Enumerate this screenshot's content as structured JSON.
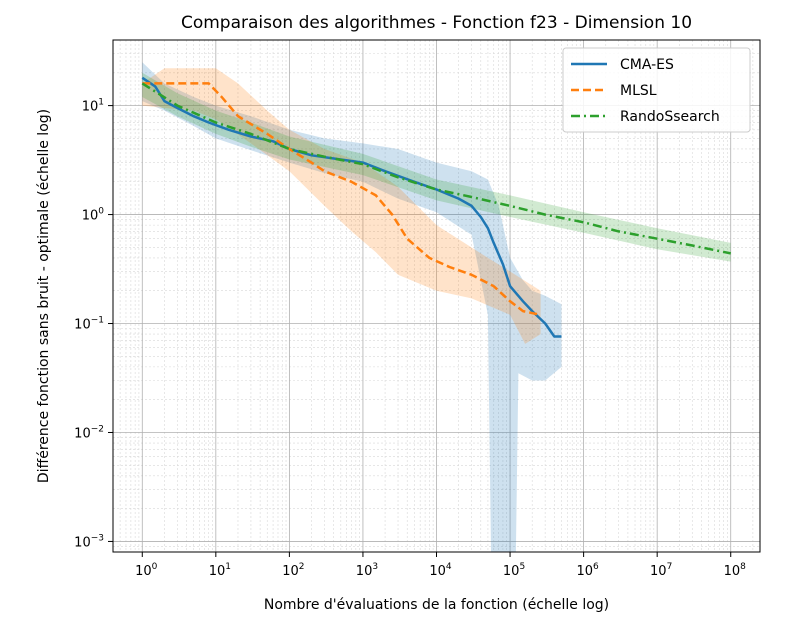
{
  "chart_data": {
    "type": "line",
    "title": "Comparaison des algorithmes - Fonction f23 - Dimension 10",
    "xlabel": "Nombre d'évaluations de la fonction (échelle log)",
    "ylabel": "Différence fonction sans bruit - optimale (échelle log)",
    "xscale": "log",
    "yscale": "log",
    "xlim": [
      0.4,
      250000000
    ],
    "ylim": [
      0.0008,
      40
    ],
    "grid": true,
    "legend_position": "top-right",
    "x_tick_labels": [
      {
        "base": "10",
        "exp": "0"
      },
      {
        "base": "10",
        "exp": "1"
      },
      {
        "base": "10",
        "exp": "2"
      },
      {
        "base": "10",
        "exp": "3"
      },
      {
        "base": "10",
        "exp": "4"
      },
      {
        "base": "10",
        "exp": "5"
      },
      {
        "base": "10",
        "exp": "6"
      },
      {
        "base": "10",
        "exp": "7"
      },
      {
        "base": "10",
        "exp": "8"
      }
    ],
    "y_tick_labels": [
      {
        "base": "10",
        "exp": "1"
      },
      {
        "base": "10",
        "exp": "0"
      },
      {
        "base": "10",
        "exp": "−1"
      },
      {
        "base": "10",
        "exp": "−2"
      },
      {
        "base": "10",
        "exp": "−3"
      }
    ],
    "series": [
      {
        "name": "CMA-ES",
        "color": "#1f77b4",
        "linestyle": "solid",
        "points": [
          [
            1,
            18
          ],
          [
            1.5,
            15
          ],
          [
            2,
            11
          ],
          [
            3,
            9.5
          ],
          [
            5,
            8
          ],
          [
            8,
            7
          ],
          [
            15,
            6
          ],
          [
            30,
            5.2
          ],
          [
            60,
            4.7
          ],
          [
            100,
            4.0
          ],
          [
            200,
            3.5
          ],
          [
            500,
            3.2
          ],
          [
            1000,
            3.0
          ],
          [
            2000,
            2.5
          ],
          [
            5000,
            2.0
          ],
          [
            10000,
            1.7
          ],
          [
            20000,
            1.4
          ],
          [
            30000,
            1.2
          ],
          [
            40000,
            0.95
          ],
          [
            50000,
            0.75
          ],
          [
            60000,
            0.55
          ],
          [
            80000,
            0.35
          ],
          [
            100000,
            0.22
          ],
          [
            150000,
            0.16
          ],
          [
            200000,
            0.13
          ],
          [
            300000,
            0.1
          ],
          [
            400000,
            0.076
          ],
          [
            500000,
            0.076
          ]
        ],
        "band_upper": [
          [
            1,
            25
          ],
          [
            2,
            16
          ],
          [
            5,
            12
          ],
          [
            10,
            10
          ],
          [
            30,
            8
          ],
          [
            100,
            6
          ],
          [
            300,
            5
          ],
          [
            1000,
            4.5
          ],
          [
            3000,
            4
          ],
          [
            10000,
            3
          ],
          [
            30000,
            2.5
          ],
          [
            50000,
            2.1
          ],
          [
            70000,
            1.2
          ],
          [
            100000,
            0.4
          ],
          [
            150000,
            0.25
          ],
          [
            200000,
            0.2
          ],
          [
            300000,
            0.18
          ],
          [
            500000,
            0.15
          ]
        ],
        "band_lower": [
          [
            1,
            11
          ],
          [
            2,
            9
          ],
          [
            5,
            6.5
          ],
          [
            10,
            5
          ],
          [
            30,
            3.9
          ],
          [
            100,
            3.0
          ],
          [
            300,
            2.4
          ],
          [
            1000,
            2.0
          ],
          [
            3000,
            1.4
          ],
          [
            10000,
            1.05
          ],
          [
            30000,
            0.65
          ],
          [
            50000,
            0.12
          ],
          [
            55000,
            0.0008
          ],
          [
            120000,
            0.0008
          ],
          [
            130000,
            0.035
          ],
          [
            200000,
            0.03
          ],
          [
            300000,
            0.03
          ],
          [
            500000,
            0.04
          ]
        ]
      },
      {
        "name": "MLSL",
        "color": "#ff7f0e",
        "linestyle": "dashed",
        "points": [
          [
            1,
            16
          ],
          [
            2,
            16
          ],
          [
            5,
            16
          ],
          [
            8,
            16
          ],
          [
            12,
            12
          ],
          [
            20,
            8
          ],
          [
            50,
            5.5
          ],
          [
            100,
            4
          ],
          [
            200,
            3
          ],
          [
            300,
            2.5
          ],
          [
            700,
            2
          ],
          [
            1500,
            1.5
          ],
          [
            2500,
            1.0
          ],
          [
            4000,
            0.6
          ],
          [
            8000,
            0.4
          ],
          [
            15000,
            0.33
          ],
          [
            30000,
            0.28
          ],
          [
            60000,
            0.22
          ],
          [
            100000,
            0.16
          ],
          [
            150000,
            0.13
          ],
          [
            260000,
            0.12
          ]
        ],
        "band_upper": [
          [
            1,
            16
          ],
          [
            2,
            22
          ],
          [
            10,
            22
          ],
          [
            20,
            16
          ],
          [
            50,
            9
          ],
          [
            100,
            6
          ],
          [
            300,
            4
          ],
          [
            1000,
            3
          ],
          [
            3000,
            1.8
          ],
          [
            10000,
            0.8
          ],
          [
            50000,
            0.4
          ],
          [
            100000,
            0.3
          ],
          [
            260000,
            0.2
          ]
        ],
        "band_lower": [
          [
            1,
            10
          ],
          [
            2,
            9.5
          ],
          [
            5,
            9
          ],
          [
            10,
            7.5
          ],
          [
            30,
            4.5
          ],
          [
            100,
            2.5
          ],
          [
            300,
            1.2
          ],
          [
            700,
            0.7
          ],
          [
            1500,
            0.45
          ],
          [
            3000,
            0.28
          ],
          [
            10000,
            0.2
          ],
          [
            30000,
            0.17
          ],
          [
            100000,
            0.12
          ],
          [
            160000,
            0.065
          ],
          [
            260000,
            0.08
          ]
        ]
      },
      {
        "name": "RandoSsearch",
        "color": "#2ca02c",
        "linestyle": "dashdot",
        "points": [
          [
            1,
            16
          ],
          [
            3,
            10
          ],
          [
            10,
            7
          ],
          [
            30,
            5.5
          ],
          [
            100,
            4
          ],
          [
            300,
            3.4
          ],
          [
            1000,
            2.9
          ],
          [
            3000,
            2.2
          ],
          [
            10000,
            1.7
          ],
          [
            30000,
            1.45
          ],
          [
            100000,
            1.2
          ],
          [
            300000,
            1.0
          ],
          [
            1000000,
            0.85
          ],
          [
            3000000,
            0.7
          ],
          [
            10000000,
            0.6
          ],
          [
            30000000,
            0.52
          ],
          [
            100000000,
            0.44
          ]
        ],
        "band_upper": [
          [
            1,
            20
          ],
          [
            3,
            13
          ],
          [
            10,
            9
          ],
          [
            30,
            7
          ],
          [
            100,
            5.2
          ],
          [
            1000,
            3.6
          ],
          [
            10000,
            2.1
          ],
          [
            100000,
            1.5
          ],
          [
            1000000,
            1.05
          ],
          [
            10000000,
            0.75
          ],
          [
            100000000,
            0.55
          ]
        ],
        "band_lower": [
          [
            1,
            12
          ],
          [
            3,
            8
          ],
          [
            10,
            5.5
          ],
          [
            30,
            4.2
          ],
          [
            100,
            3.2
          ],
          [
            1000,
            2.3
          ],
          [
            10000,
            1.35
          ],
          [
            100000,
            0.95
          ],
          [
            1000000,
            0.68
          ],
          [
            10000000,
            0.48
          ],
          [
            100000000,
            0.37
          ]
        ]
      }
    ]
  }
}
